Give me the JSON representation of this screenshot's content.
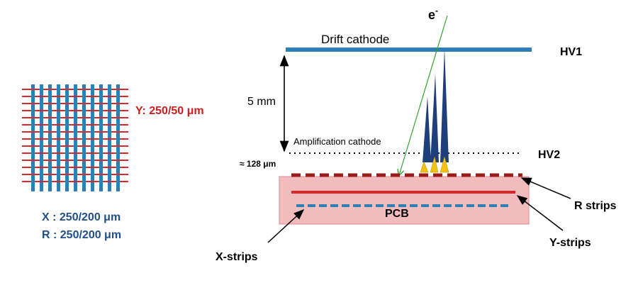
{
  "labels": {
    "electron": "e",
    "electron_sup": "-",
    "drift_cathode": "Drift cathode",
    "hv1": "HV1",
    "gap": "5 mm",
    "amp_cathode": "Amplification cathode",
    "hv2": "HV2",
    "mesh_gap": "≈ 128 μm",
    "y_pitch": "Y: 250/50 μm",
    "x_pitch": "X : 250/200 μm",
    "r_pitch": "R : 250/200 μm",
    "pcb": "PCB",
    "r_strips": "R strips",
    "y_strips": "Y-strips",
    "x_strips": "X-strips"
  },
  "colors": {
    "blue_strip": "#2e7fb8",
    "red_strip": "#d9272e",
    "dark_red": "#9b1b1b",
    "pcb_fill": "#f2bcbf",
    "pcb_border": "#e08890",
    "avalanche": "#1f3f7a",
    "spark": "#f4c20d",
    "track": "#2fa52f",
    "label_blue": "#1f4f8a",
    "label_red": "#cc1f1f"
  }
}
